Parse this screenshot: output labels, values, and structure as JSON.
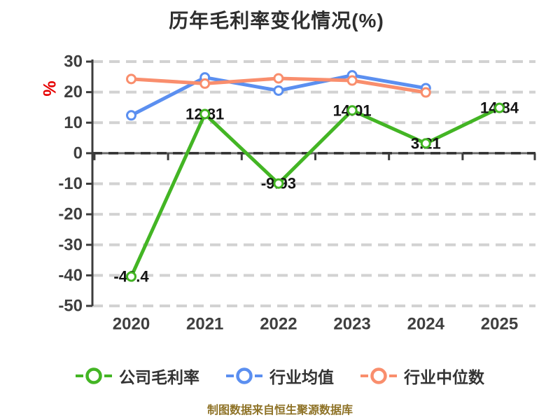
{
  "title": "历年毛利率变化情况(%)",
  "y_axis_label": "%",
  "footer": "制图数据来自恒生聚源数据库",
  "colors": {
    "company": "#43b524",
    "industry_avg": "#5b8ff0",
    "industry_median": "#f98e6d",
    "grid": "#d2d2d2",
    "axis": "#3c3c3c",
    "tick_label": "#3f3f3f",
    "data_label": "#141414",
    "title": "#2e2e2e",
    "y_unit_label": "#e60000",
    "footer": "#8e7226"
  },
  "chart_data": {
    "type": "line",
    "title": "历年毛利率变化情况(%)",
    "categories": [
      "2020",
      "2021",
      "2022",
      "2023",
      "2024",
      "2025"
    ],
    "series": [
      {
        "name": "公司毛利率",
        "color": "#43b524",
        "values": [
          -40.4,
          12.81,
          -9.93,
          14.01,
          3.21,
          14.84
        ],
        "show_labels": true
      },
      {
        "name": "行业均值",
        "color": "#5b8ff0",
        "values": [
          12.4,
          24.8,
          20.5,
          25.5,
          21.3,
          null
        ],
        "show_labels": false
      },
      {
        "name": "行业中位数",
        "color": "#f98e6d",
        "values": [
          24.3,
          22.8,
          24.5,
          23.8,
          19.9,
          null
        ],
        "show_labels": false
      }
    ],
    "ylabel": "%",
    "ylim": [
      -50,
      30
    ],
    "y_ticks": [
      30,
      20,
      10,
      0,
      -10,
      -20,
      -30,
      -40,
      -50
    ],
    "grid": true,
    "grid_style": "dashed",
    "legend_position": "bottom"
  }
}
